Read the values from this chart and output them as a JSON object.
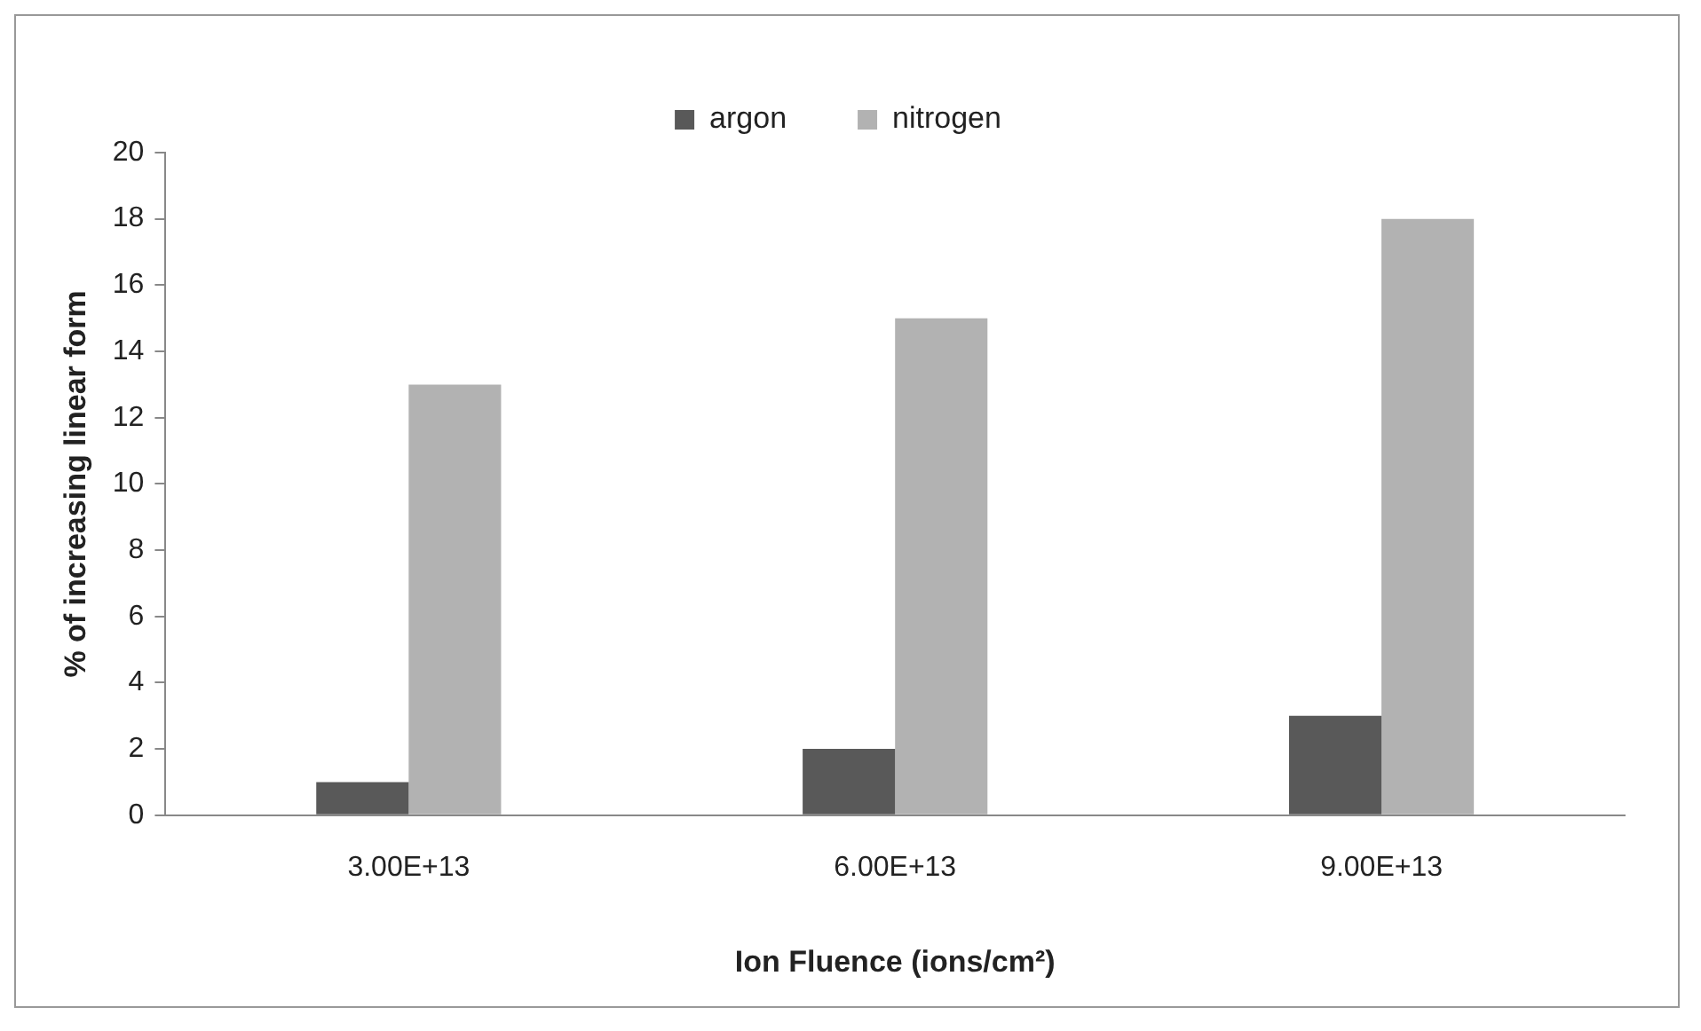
{
  "chart_data": {
    "type": "bar",
    "xlabel": "Ion Fluence (ions/cm²)",
    "ylabel": "% of increasing linear form",
    "categories": [
      "3.00E+13",
      "6.00E+13",
      "9.00E+13"
    ],
    "series": [
      {
        "name": "argon",
        "color": "#595959",
        "values": [
          1,
          2,
          3
        ]
      },
      {
        "name": "nitrogen",
        "color": "#b2b2b2",
        "values": [
          13,
          15,
          18
        ]
      }
    ],
    "ylim": [
      0,
      20
    ],
    "yticks": [
      0,
      2,
      4,
      6,
      8,
      10,
      12,
      14,
      16,
      18,
      20
    ],
    "grid": false,
    "legend": "top"
  }
}
